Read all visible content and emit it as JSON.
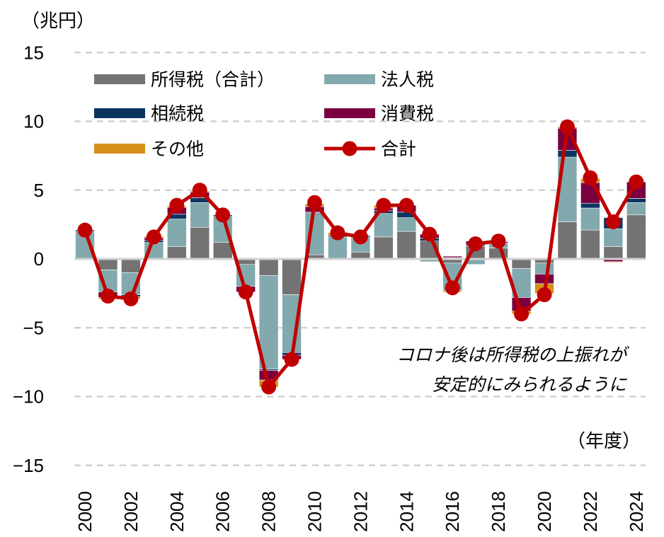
{
  "chart_data": {
    "type": "bar",
    "stacked": true,
    "ylabel": "（兆円）",
    "xlabel": "（年度）",
    "ylim": [
      -15,
      15
    ],
    "yticks": [
      15,
      10,
      5,
      0,
      -5,
      -10,
      -15
    ],
    "ytick_labels": [
      "15",
      "10",
      "5",
      "0",
      "−5",
      "−10",
      "−15"
    ],
    "grid": true,
    "legend": "top-left",
    "categories": [
      "2000",
      "2001",
      "2002",
      "2003",
      "2004",
      "2005",
      "2006",
      "2007",
      "2008",
      "2009",
      "2010",
      "2011",
      "2012",
      "2013",
      "2014",
      "2015",
      "2016",
      "2017",
      "2018",
      "2019",
      "2020",
      "2021",
      "2022",
      "2023",
      "2024"
    ],
    "xtick_labels": [
      "2000",
      "2002",
      "2004",
      "2006",
      "2008",
      "2010",
      "2012",
      "2014",
      "2016",
      "2018",
      "2020",
      "2022",
      "2024"
    ],
    "series": [
      {
        "name": "所得税（合計）",
        "color": "#737373",
        "values": [
          0,
          -0.8,
          -1.0,
          0,
          0.9,
          2.3,
          1.2,
          -0.4,
          -1.2,
          -2.6,
          0.3,
          0,
          0.5,
          1.6,
          2.0,
          1.3,
          -0.3,
          0.9,
          0.8,
          -0.7,
          -0.3,
          2.7,
          2.1,
          0.9,
          3.2
        ]
      },
      {
        "name": "法人税",
        "color": "#82a9ae",
        "values": [
          2.0,
          -1.6,
          -1.6,
          1.2,
          2.0,
          1.8,
          1.9,
          -1.6,
          -6.8,
          -4.2,
          3.1,
          1.6,
          1.1,
          1.7,
          1.0,
          -0.2,
          -2.0,
          -0.4,
          0.3,
          -2.1,
          -0.8,
          4.7,
          1.6,
          1.3,
          0.9
        ]
      },
      {
        "name": "相続税",
        "color": "#0b3560",
        "values": [
          0.1,
          0,
          -0.15,
          0.15,
          0.35,
          0.35,
          0.1,
          0,
          -0.1,
          -0.2,
          0,
          0.1,
          0.1,
          0.2,
          0.4,
          0.2,
          0.1,
          0.1,
          0.05,
          0,
          0,
          0.5,
          0.35,
          0.8,
          0.3
        ]
      },
      {
        "name": "消費税",
        "color": "#7a0040",
        "values": [
          0,
          -0.4,
          0,
          0.2,
          0.5,
          0.4,
          0,
          -0.4,
          -0.7,
          -0.3,
          0.4,
          0,
          0,
          0.2,
          0.5,
          0.3,
          0.1,
          0.3,
          0.1,
          -1.0,
          -0.7,
          1.6,
          1.5,
          -0.2,
          1.2
        ]
      },
      {
        "name": "その他",
        "color": "#d4901a",
        "values": [
          0,
          -0.1,
          -0.15,
          0.1,
          0.1,
          0.1,
          0,
          0,
          -0.5,
          0,
          0.2,
          0.2,
          0,
          0.2,
          0,
          0,
          -0.1,
          0,
          0,
          -0.2,
          -0.7,
          0.1,
          0.3,
          -0.05,
          0
        ]
      },
      {
        "name": "合計",
        "type": "line",
        "color": "#c00000",
        "values": [
          2.1,
          -2.7,
          -2.9,
          1.6,
          3.9,
          5.0,
          3.2,
          -2.4,
          -9.3,
          -7.3,
          4.1,
          1.9,
          1.6,
          3.9,
          3.9,
          1.8,
          -2.1,
          1.1,
          1.3,
          -4.0,
          -2.6,
          9.6,
          5.9,
          2.7,
          5.6
        ]
      }
    ],
    "annotation": [
      "コロナ後は所得税の上振れが",
      "安定的にみられるように"
    ]
  }
}
